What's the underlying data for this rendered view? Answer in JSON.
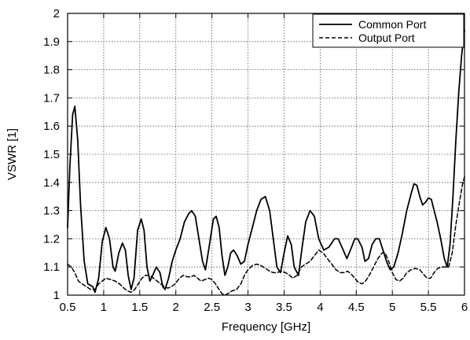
{
  "chart_data": {
    "type": "line",
    "title": "",
    "xlabel": "Frequency [GHz]",
    "ylabel": "VSWR [1]",
    "xlim": [
      0.5,
      6
    ],
    "ylim": [
      1,
      2
    ],
    "xticks": [
      "0.5",
      "1",
      "1.5",
      "2",
      "2.5",
      "3",
      "3.5",
      "4",
      "4.5",
      "5",
      "5.5",
      "6"
    ],
    "yticks": [
      "1",
      "1.1",
      "1.2",
      "1.3",
      "1.4",
      "1.5",
      "1.6",
      "1.7",
      "1.8",
      "1.9",
      "2"
    ],
    "grid": true,
    "legend_position": "top-right",
    "series": [
      {
        "name": "Common Port",
        "style": "solid",
        "color": "#000000",
        "points": [
          [
            0.5,
            1.24
          ],
          [
            0.53,
            1.45
          ],
          [
            0.57,
            1.64
          ],
          [
            0.6,
            1.67
          ],
          [
            0.64,
            1.55
          ],
          [
            0.68,
            1.32
          ],
          [
            0.73,
            1.12
          ],
          [
            0.78,
            1.04
          ],
          [
            0.85,
            1.03
          ],
          [
            0.88,
            1.01
          ],
          [
            0.93,
            1.06
          ],
          [
            0.98,
            1.19
          ],
          [
            1.03,
            1.24
          ],
          [
            1.08,
            1.2
          ],
          [
            1.13,
            1.1
          ],
          [
            1.16,
            1.085
          ],
          [
            1.21,
            1.15
          ],
          [
            1.26,
            1.185
          ],
          [
            1.3,
            1.16
          ],
          [
            1.34,
            1.07
          ],
          [
            1.38,
            1.02
          ],
          [
            1.42,
            1.06
          ],
          [
            1.47,
            1.23
          ],
          [
            1.52,
            1.27
          ],
          [
            1.56,
            1.23
          ],
          [
            1.6,
            1.1
          ],
          [
            1.64,
            1.05
          ],
          [
            1.68,
            1.07
          ],
          [
            1.73,
            1.1
          ],
          [
            1.78,
            1.08
          ],
          [
            1.82,
            1.03
          ],
          [
            1.85,
            1.02
          ],
          [
            1.9,
            1.06
          ],
          [
            1.95,
            1.12
          ],
          [
            2.0,
            1.16
          ],
          [
            2.06,
            1.2
          ],
          [
            2.12,
            1.26
          ],
          [
            2.18,
            1.29
          ],
          [
            2.22,
            1.3
          ],
          [
            2.27,
            1.28
          ],
          [
            2.32,
            1.2
          ],
          [
            2.37,
            1.12
          ],
          [
            2.41,
            1.09
          ],
          [
            2.46,
            1.17
          ],
          [
            2.52,
            1.27
          ],
          [
            2.56,
            1.28
          ],
          [
            2.6,
            1.24
          ],
          [
            2.64,
            1.14
          ],
          [
            2.68,
            1.07
          ],
          [
            2.72,
            1.1
          ],
          [
            2.76,
            1.15
          ],
          [
            2.8,
            1.16
          ],
          [
            2.85,
            1.14
          ],
          [
            2.9,
            1.11
          ],
          [
            2.95,
            1.12
          ],
          [
            3.0,
            1.18
          ],
          [
            3.06,
            1.24
          ],
          [
            3.12,
            1.3
          ],
          [
            3.18,
            1.34
          ],
          [
            3.24,
            1.35
          ],
          [
            3.3,
            1.3
          ],
          [
            3.35,
            1.2
          ],
          [
            3.4,
            1.1
          ],
          [
            3.45,
            1.08
          ],
          [
            3.5,
            1.15
          ],
          [
            3.55,
            1.21
          ],
          [
            3.6,
            1.18
          ],
          [
            3.64,
            1.1
          ],
          [
            3.7,
            1.07
          ],
          [
            3.75,
            1.17
          ],
          [
            3.8,
            1.26
          ],
          [
            3.86,
            1.3
          ],
          [
            3.92,
            1.28
          ],
          [
            3.98,
            1.2
          ],
          [
            4.05,
            1.16
          ],
          [
            4.12,
            1.17
          ],
          [
            4.2,
            1.2
          ],
          [
            4.25,
            1.2
          ],
          [
            4.32,
            1.16
          ],
          [
            4.37,
            1.13
          ],
          [
            4.42,
            1.16
          ],
          [
            4.48,
            1.2
          ],
          [
            4.52,
            1.2
          ],
          [
            4.58,
            1.17
          ],
          [
            4.62,
            1.12
          ],
          [
            4.67,
            1.13
          ],
          [
            4.72,
            1.18
          ],
          [
            4.77,
            1.2
          ],
          [
            4.82,
            1.2
          ],
          [
            4.87,
            1.16
          ],
          [
            4.92,
            1.12
          ],
          [
            4.97,
            1.09
          ],
          [
            5.02,
            1.1
          ],
          [
            5.08,
            1.15
          ],
          [
            5.14,
            1.22
          ],
          [
            5.2,
            1.3
          ],
          [
            5.26,
            1.36
          ],
          [
            5.3,
            1.395
          ],
          [
            5.34,
            1.39
          ],
          [
            5.38,
            1.35
          ],
          [
            5.42,
            1.32
          ],
          [
            5.46,
            1.33
          ],
          [
            5.5,
            1.345
          ],
          [
            5.54,
            1.34
          ],
          [
            5.58,
            1.3
          ],
          [
            5.62,
            1.26
          ],
          [
            5.67,
            1.2
          ],
          [
            5.72,
            1.13
          ],
          [
            5.76,
            1.1
          ],
          [
            5.8,
            1.18
          ],
          [
            5.84,
            1.35
          ],
          [
            5.88,
            1.55
          ],
          [
            5.92,
            1.72
          ],
          [
            5.96,
            1.85
          ],
          [
            6.0,
            1.94
          ]
        ]
      },
      {
        "name": "Output Port",
        "style": "dashed",
        "color": "#000000",
        "points": [
          [
            0.5,
            1.11
          ],
          [
            0.55,
            1.1
          ],
          [
            0.6,
            1.08
          ],
          [
            0.65,
            1.05
          ],
          [
            0.7,
            1.04
          ],
          [
            0.76,
            1.03
          ],
          [
            0.82,
            1.02
          ],
          [
            0.88,
            1.02
          ],
          [
            0.93,
            1.04
          ],
          [
            0.98,
            1.05
          ],
          [
            1.03,
            1.06
          ],
          [
            1.1,
            1.055
          ],
          [
            1.16,
            1.05
          ],
          [
            1.22,
            1.04
          ],
          [
            1.28,
            1.025
          ],
          [
            1.33,
            1.015
          ],
          [
            1.38,
            1.01
          ],
          [
            1.43,
            1.02
          ],
          [
            1.48,
            1.04
          ],
          [
            1.53,
            1.06
          ],
          [
            1.58,
            1.07
          ],
          [
            1.64,
            1.07
          ],
          [
            1.69,
            1.06
          ],
          [
            1.74,
            1.05
          ],
          [
            1.79,
            1.04
          ],
          [
            1.84,
            1.03
          ],
          [
            1.89,
            1.025
          ],
          [
            1.94,
            1.03
          ],
          [
            1.99,
            1.04
          ],
          [
            2.05,
            1.06
          ],
          [
            2.1,
            1.07
          ],
          [
            2.16,
            1.065
          ],
          [
            2.21,
            1.065
          ],
          [
            2.25,
            1.07
          ],
          [
            2.3,
            1.06
          ],
          [
            2.35,
            1.05
          ],
          [
            2.4,
            1.055
          ],
          [
            2.46,
            1.06
          ],
          [
            2.5,
            1.055
          ],
          [
            2.55,
            1.04
          ],
          [
            2.6,
            1.02
          ],
          [
            2.64,
            1.005
          ],
          [
            2.68,
            1.0
          ],
          [
            2.72,
            1.005
          ],
          [
            2.78,
            1.015
          ],
          [
            2.84,
            1.02
          ],
          [
            2.9,
            1.04
          ],
          [
            2.95,
            1.07
          ],
          [
            3.0,
            1.09
          ],
          [
            3.06,
            1.105
          ],
          [
            3.12,
            1.11
          ],
          [
            3.18,
            1.105
          ],
          [
            3.24,
            1.095
          ],
          [
            3.3,
            1.085
          ],
          [
            3.35,
            1.08
          ],
          [
            3.4,
            1.08
          ],
          [
            3.46,
            1.085
          ],
          [
            3.52,
            1.08
          ],
          [
            3.58,
            1.07
          ],
          [
            3.62,
            1.06
          ],
          [
            3.68,
            1.07
          ],
          [
            3.74,
            1.1
          ],
          [
            3.8,
            1.11
          ],
          [
            3.86,
            1.12
          ],
          [
            3.92,
            1.14
          ],
          [
            3.98,
            1.16
          ],
          [
            4.04,
            1.15
          ],
          [
            4.1,
            1.13
          ],
          [
            4.16,
            1.11
          ],
          [
            4.22,
            1.09
          ],
          [
            4.28,
            1.08
          ],
          [
            4.33,
            1.08
          ],
          [
            4.38,
            1.085
          ],
          [
            4.43,
            1.075
          ],
          [
            4.48,
            1.06
          ],
          [
            4.53,
            1.045
          ],
          [
            4.58,
            1.04
          ],
          [
            4.63,
            1.05
          ],
          [
            4.68,
            1.07
          ],
          [
            4.74,
            1.1
          ],
          [
            4.8,
            1.13
          ],
          [
            4.86,
            1.15
          ],
          [
            4.9,
            1.15
          ],
          [
            4.95,
            1.12
          ],
          [
            5.0,
            1.08
          ],
          [
            5.05,
            1.055
          ],
          [
            5.1,
            1.05
          ],
          [
            5.15,
            1.06
          ],
          [
            5.2,
            1.08
          ],
          [
            5.26,
            1.09
          ],
          [
            5.32,
            1.095
          ],
          [
            5.38,
            1.09
          ],
          [
            5.43,
            1.075
          ],
          [
            5.48,
            1.06
          ],
          [
            5.53,
            1.06
          ],
          [
            5.58,
            1.08
          ],
          [
            5.63,
            1.095
          ],
          [
            5.68,
            1.1
          ],
          [
            5.73,
            1.1
          ],
          [
            5.78,
            1.1
          ],
          [
            5.83,
            1.15
          ],
          [
            5.88,
            1.25
          ],
          [
            5.93,
            1.33
          ],
          [
            5.97,
            1.39
          ],
          [
            6.0,
            1.42
          ]
        ]
      }
    ]
  }
}
